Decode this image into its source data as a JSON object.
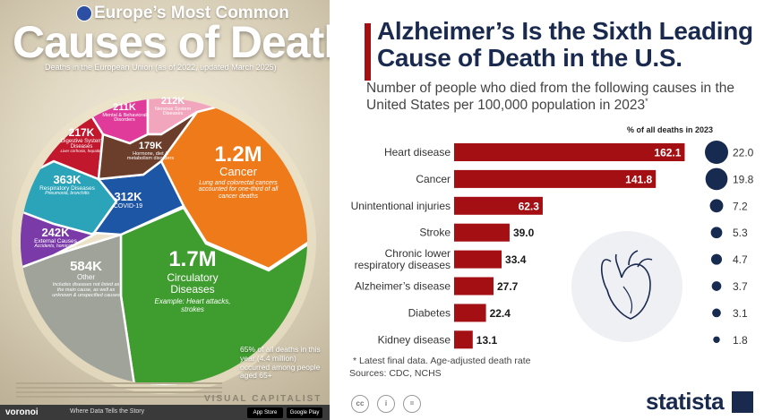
{
  "left_infographic": {
    "title_small": "Europe’s Most Common",
    "title_big": "Causes of Death",
    "subtitle": "Deaths in the European Union (as of 2022, updated March 2025)",
    "cells": [
      {
        "value": "1.2M",
        "label": "Cancer",
        "note": "Lung and colorectal cancers accounted for one-third of all cancer deaths",
        "color": "#ef7a1a"
      },
      {
        "value": "1.7M",
        "label": "Circulatory Diseases",
        "note": "Example: Heart attacks, strokes",
        "color": "#3f9c2f"
      },
      {
        "value": "584K",
        "label": "Other",
        "note": "Includes diseases not listed as the main cause, as well as unknown & unspecified causes",
        "color": "#9fa39a"
      },
      {
        "value": "363K",
        "label": "Respiratory Diseases",
        "note": "Pneumonia, bronchitis",
        "color": "#2ba3b8"
      },
      {
        "value": "312K",
        "label": "COVID-19",
        "note": "",
        "color": "#1e56a6"
      },
      {
        "value": "242K",
        "label": "External Causes",
        "note": "Accidents, homicides",
        "color": "#7a3aa8"
      },
      {
        "value": "217K",
        "label": "Digestive System Diseases",
        "note": "Liver cirrhosis, hepatitis",
        "color": "#c2182e"
      },
      {
        "value": "211K",
        "label": "Mental & Behavioral Disorders",
        "note": "",
        "color": "#e03a9a"
      },
      {
        "value": "212K",
        "label": "Nervous System Diseases",
        "note": "",
        "color": "#f2a6be"
      },
      {
        "value": "179K",
        "label": "Hormone, diet & metabolism disorders",
        "note": "",
        "color": "#6b3d2b"
      }
    ],
    "side_note": "65% of all deaths in this year (4.4 million) occurred among people aged 65+",
    "brand": "VISUAL CAPITALIST",
    "footer": {
      "logo": "voronoi",
      "tagline": "Where Data Tells the Story",
      "app_store": "App Store",
      "google_play": "Google Play"
    }
  },
  "right_chart": {
    "title": "Alzheimer’s Is the Sixth Leading Cause of Death in the U.S.",
    "subtitle": "Number of people who died from the following causes in the United States per 100,000 population in 2023",
    "subtitle_mark": "*",
    "pct_header": "% of all deaths in 2023",
    "note": "* Latest final data. Age-adjusted death rate",
    "source": "Sources: CDC, NCHS",
    "brand": "statista",
    "license_icons": [
      "cc",
      "i",
      "="
    ]
  },
  "chart_data": {
    "type": "bar",
    "orientation": "horizontal",
    "title": "Alzheimer’s Is the Sixth Leading Cause of Death in the U.S.",
    "categories": [
      "Heart disease",
      "Cancer",
      "Unintentional injuries",
      "Stroke",
      "Chronic lower respiratory diseases",
      "Alzheimer’s disease",
      "Diabetes",
      "Kidney disease"
    ],
    "series": [
      {
        "name": "Deaths per 100,000 population",
        "values": [
          162.1,
          141.8,
          62.3,
          39.0,
          33.4,
          27.7,
          22.4,
          13.1
        ]
      },
      {
        "name": "% of all deaths in 2023",
        "values": [
          22.0,
          19.8,
          7.2,
          5.3,
          4.7,
          3.7,
          3.1,
          1.8
        ]
      }
    ],
    "value_labels": [
      "162.1",
      "141.8",
      "62.3",
      "39.0",
      "33.4",
      "27.7",
      "22.4",
      "13.1"
    ],
    "pct_labels": [
      "22.0",
      "19.8",
      "7.2",
      "5.3",
      "4.7",
      "3.7",
      "3.1",
      "1.8"
    ],
    "xlim": [
      0,
      170
    ],
    "bar_color": "#a40f13",
    "bubble_color": "#172a4f"
  }
}
